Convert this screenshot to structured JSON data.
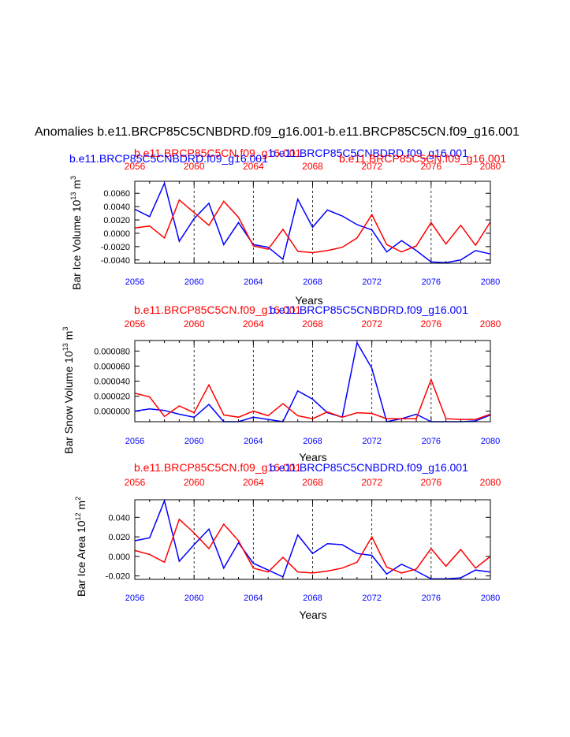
{
  "title": "Anomalies b.e11.BRCP85C5CNBDRD.f09_g16.001-b.e11.BRCP85C5CN.f09_g16.001",
  "colors": {
    "series_a": "#0000ff",
    "series_b": "#ff0000",
    "axis": "#000000"
  },
  "chart_data": [
    {
      "type": "line",
      "title_blue": "b.e11.BRCP85C5CNBDRD.f09_g16.001",
      "title_red": "b.e11.BRCP85C5CN.f09_g16.001",
      "title_blue2": "b.e11.BRCP85C5CNBDRD.f09_g16.001",
      "title_red2": "b.e11.BRCP85C5CN.f09_g16.001",
      "ylabel": "Bar Ice Volume 10",
      "ylabel_exp": "13",
      "ylabel_unit": " m",
      "ylabel_unit_exp": "3",
      "xlabel": "Years",
      "xlim": [
        2056,
        2080
      ],
      "ylim": [
        -0.0045,
        0.0078
      ],
      "xticks": [
        "2056",
        "2060",
        "2064",
        "2068",
        "2072",
        "2076",
        "2080"
      ],
      "yticks": [
        "-0.0040",
        "-0.0020",
        "0.0000",
        "0.0020",
        "0.0040",
        "0.0060"
      ],
      "ytick_values": [
        -0.004,
        -0.002,
        0.0,
        0.002,
        0.004,
        0.006
      ],
      "grid_years": [
        2060,
        2064,
        2068,
        2072,
        2076
      ],
      "x": [
        2056,
        2057,
        2058,
        2059,
        2060,
        2061,
        2062,
        2063,
        2064,
        2065,
        2066,
        2067,
        2068,
        2069,
        2070,
        2071,
        2072,
        2073,
        2074,
        2075,
        2076,
        2077,
        2078,
        2079,
        2080
      ],
      "series": [
        {
          "name": "b.e11.BRCP85C5CNBDRD.f09_g16.001",
          "color": "blue",
          "values": [
            0.0036,
            0.0025,
            0.0075,
            -0.0012,
            0.0022,
            0.0045,
            -0.0017,
            0.0016,
            -0.0017,
            -0.0021,
            -0.0039,
            0.0051,
            0.0009,
            0.0035,
            0.0026,
            0.0013,
            0.0005,
            -0.0028,
            -0.0011,
            -0.0026,
            -0.0043,
            -0.0044,
            -0.004,
            -0.0026,
            -0.0031
          ]
        },
        {
          "name": "b.e11.BRCP85C5CN.f09_g16.001",
          "color": "red",
          "values": [
            0.0008,
            0.0011,
            -0.0007,
            0.005,
            0.0031,
            0.0012,
            0.0048,
            0.0024,
            -0.0019,
            -0.0024,
            0.0006,
            -0.0027,
            -0.0029,
            -0.0026,
            -0.0021,
            -0.0007,
            0.0028,
            -0.0017,
            -0.0028,
            -0.0019,
            0.0016,
            -0.0016,
            0.0012,
            -0.0018,
            0.0017
          ]
        }
      ]
    },
    {
      "type": "line",
      "title_blue": "b.e11.BRCP85C5CNBDRD.f09_g16.001",
      "title_red": "b.e11.BRCP85C5CN.f09_g16.001",
      "ylabel": "Bar Snow Volume 10",
      "ylabel_exp": "13",
      "ylabel_unit": " m",
      "ylabel_unit_exp": "3",
      "xlabel": "Years",
      "xlim": [
        2056,
        2080
      ],
      "ylim": [
        -1.4e-05,
        9.4e-05
      ],
      "xticks": [
        "2056",
        "2060",
        "2064",
        "2068",
        "2072",
        "2076",
        "2080"
      ],
      "yticks": [
        "0.000000",
        "0.000020",
        "0.000040",
        "0.000060",
        "0.000080"
      ],
      "ytick_values": [
        0.0,
        2e-05,
        4e-05,
        6e-05,
        8e-05
      ],
      "grid_years": [
        2060,
        2064,
        2068,
        2072,
        2076
      ],
      "x": [
        2056,
        2057,
        2058,
        2059,
        2060,
        2061,
        2062,
        2063,
        2064,
        2065,
        2066,
        2067,
        2068,
        2069,
        2070,
        2071,
        2072,
        2073,
        2074,
        2075,
        2076,
        2077,
        2078,
        2079,
        2080
      ],
      "series": [
        {
          "name": "b.e11.BRCP85C5CNBDRD.f09_g16.001",
          "color": "blue",
          "values": [
            0.0,
            3e-06,
            1e-06,
            -4e-06,
            -8e-06,
            9e-06,
            -1.4e-05,
            -1.4e-05,
            -8e-06,
            -1.1e-05,
            -1.4e-05,
            2.7e-05,
            1.6e-05,
            -2e-06,
            -8e-06,
            9.1e-05,
            5.7e-05,
            -1.4e-05,
            -1e-05,
            -4e-06,
            -1.4e-05,
            -1.4e-05,
            -1.4e-05,
            -1.3e-05,
            -5e-06
          ]
        },
        {
          "name": "b.e11.BRCP85C5CN.f09_g16.001",
          "color": "red",
          "values": [
            2.4e-05,
            1.9e-05,
            -7e-06,
            7e-06,
            -2e-06,
            3.5e-05,
            -5e-06,
            -8e-06,
            0.0,
            -6e-06,
            1e-05,
            -6e-06,
            -1e-05,
            -1e-06,
            -8e-06,
            -2e-06,
            -3e-06,
            -1e-05,
            -1e-05,
            -1e-05,
            4.2e-05,
            -1e-05,
            -1.1e-05,
            -1.1e-05,
            -4e-06
          ]
        }
      ]
    },
    {
      "type": "line",
      "title_blue": "b.e11.BRCP85C5CNBDRD.f09_g16.001",
      "title_red": "b.e11.BRCP85C5CN.f09_g16.001",
      "ylabel": "Bar Ice Area 10",
      "ylabel_exp": "12",
      "ylabel_unit": " m",
      "ylabel_unit_exp": "2",
      "xlabel": "Years",
      "xlim": [
        2056,
        2080
      ],
      "ylim": [
        -0.0235,
        0.058
      ],
      "xticks": [
        "2056",
        "2060",
        "2064",
        "2068",
        "2072",
        "2076",
        "2080"
      ],
      "yticks": [
        "-0.020",
        "0.000",
        "0.020",
        "0.040"
      ],
      "ytick_values": [
        -0.02,
        0.0,
        0.02,
        0.04
      ],
      "grid_years": [
        2060,
        2064,
        2068,
        2072,
        2076
      ],
      "x": [
        2056,
        2057,
        2058,
        2059,
        2060,
        2061,
        2062,
        2063,
        2064,
        2065,
        2066,
        2067,
        2068,
        2069,
        2070,
        2071,
        2072,
        2073,
        2074,
        2075,
        2076,
        2077,
        2078,
        2079,
        2080
      ],
      "series": [
        {
          "name": "b.e11.BRCP85C5CNBDRD.f09_g16.001",
          "color": "blue",
          "values": [
            0.016,
            0.019,
            0.057,
            -0.005,
            0.012,
            0.028,
            -0.012,
            0.014,
            -0.007,
            -0.014,
            -0.021,
            0.022,
            0.003,
            0.013,
            0.012,
            0.003,
            0.001,
            -0.018,
            -0.008,
            -0.015,
            -0.023,
            -0.023,
            -0.022,
            -0.014,
            -0.016
          ]
        },
        {
          "name": "b.e11.BRCP85C5CN.f09_g16.001",
          "color": "red",
          "values": [
            0.006,
            0.002,
            -0.006,
            0.038,
            0.024,
            0.008,
            0.033,
            0.016,
            -0.012,
            -0.016,
            -0.001,
            -0.016,
            -0.017,
            -0.015,
            -0.012,
            -0.006,
            0.02,
            -0.011,
            -0.017,
            -0.013,
            0.008,
            -0.01,
            0.007,
            -0.012,
            0.0
          ]
        }
      ]
    }
  ]
}
